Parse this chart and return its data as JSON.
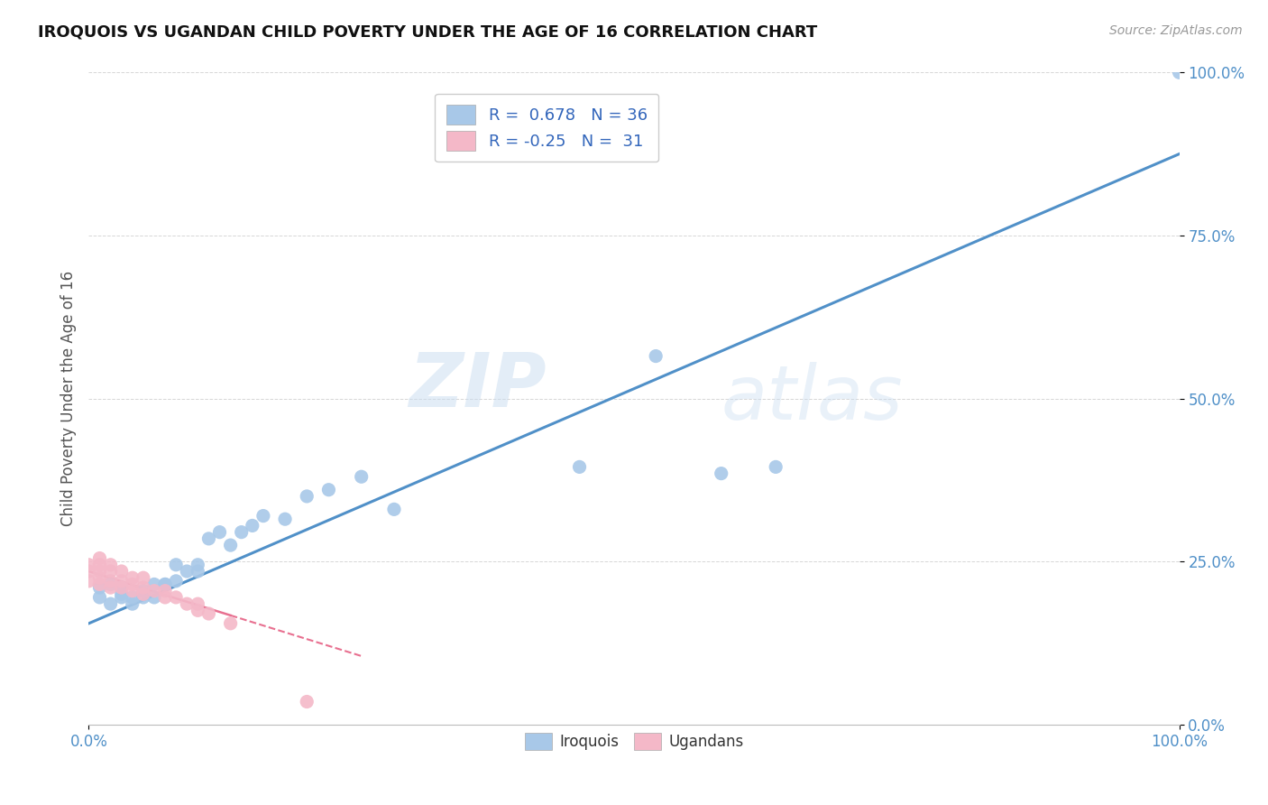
{
  "title": "IROQUOIS VS UGANDAN CHILD POVERTY UNDER THE AGE OF 16 CORRELATION CHART",
  "source": "Source: ZipAtlas.com",
  "ylabel": "Child Poverty Under the Age of 16",
  "xlim": [
    0.0,
    1.0
  ],
  "ylim": [
    0.0,
    1.0
  ],
  "xtick_positions": [
    0.0,
    1.0
  ],
  "xtick_labels": [
    "0.0%",
    "100.0%"
  ],
  "ytick_positions": [
    0.0,
    0.25,
    0.5,
    0.75,
    1.0
  ],
  "ytick_labels": [
    "0.0%",
    "25.0%",
    "50.0%",
    "75.0%",
    "100.0%"
  ],
  "legend_labels": [
    "Iroquois",
    "Ugandans"
  ],
  "blue_scatter_color": "#A8C8E8",
  "pink_scatter_color": "#F4B8C8",
  "blue_line_color": "#5090C8",
  "pink_line_color": "#E87090",
  "R_blue": 0.678,
  "N_blue": 36,
  "R_pink": -0.25,
  "N_pink": 31,
  "watermark_zip": "ZIP",
  "watermark_atlas": "atlas",
  "iroquois_x": [
    0.01,
    0.01,
    0.02,
    0.02,
    0.03,
    0.03,
    0.03,
    0.04,
    0.04,
    0.05,
    0.05,
    0.06,
    0.06,
    0.07,
    0.07,
    0.08,
    0.08,
    0.09,
    0.1,
    0.1,
    0.11,
    0.12,
    0.13,
    0.14,
    0.15,
    0.16,
    0.18,
    0.2,
    0.22,
    0.25,
    0.28,
    0.45,
    0.52,
    0.58,
    0.63,
    1.0
  ],
  "iroquois_y": [
    0.195,
    0.21,
    0.185,
    0.215,
    0.2,
    0.195,
    0.21,
    0.185,
    0.195,
    0.195,
    0.205,
    0.215,
    0.195,
    0.215,
    0.215,
    0.245,
    0.22,
    0.235,
    0.245,
    0.235,
    0.285,
    0.295,
    0.275,
    0.295,
    0.305,
    0.32,
    0.315,
    0.35,
    0.36,
    0.38,
    0.33,
    0.395,
    0.565,
    0.385,
    0.395,
    1.0
  ],
  "ugandan_x": [
    0.0,
    0.0,
    0.0,
    0.01,
    0.01,
    0.01,
    0.01,
    0.01,
    0.02,
    0.02,
    0.02,
    0.02,
    0.03,
    0.03,
    0.03,
    0.04,
    0.04,
    0.04,
    0.05,
    0.05,
    0.05,
    0.06,
    0.07,
    0.07,
    0.08,
    0.09,
    0.1,
    0.1,
    0.11,
    0.13,
    0.2
  ],
  "ugandan_y": [
    0.22,
    0.235,
    0.245,
    0.215,
    0.225,
    0.235,
    0.245,
    0.255,
    0.21,
    0.22,
    0.235,
    0.245,
    0.21,
    0.22,
    0.235,
    0.205,
    0.215,
    0.225,
    0.2,
    0.21,
    0.225,
    0.205,
    0.195,
    0.205,
    0.195,
    0.185,
    0.175,
    0.185,
    0.17,
    0.155,
    0.035
  ],
  "blue_line_x0": 0.0,
  "blue_line_y0": 0.155,
  "blue_line_x1": 1.0,
  "blue_line_y1": 0.875,
  "pink_line_x0": 0.0,
  "pink_line_y0": 0.235,
  "pink_line_x1": 0.25,
  "pink_line_x1_solid": 0.13,
  "pink_line_y1": 0.105,
  "background_color": "#FFFFFF",
  "grid_color": "#CCCCCC"
}
